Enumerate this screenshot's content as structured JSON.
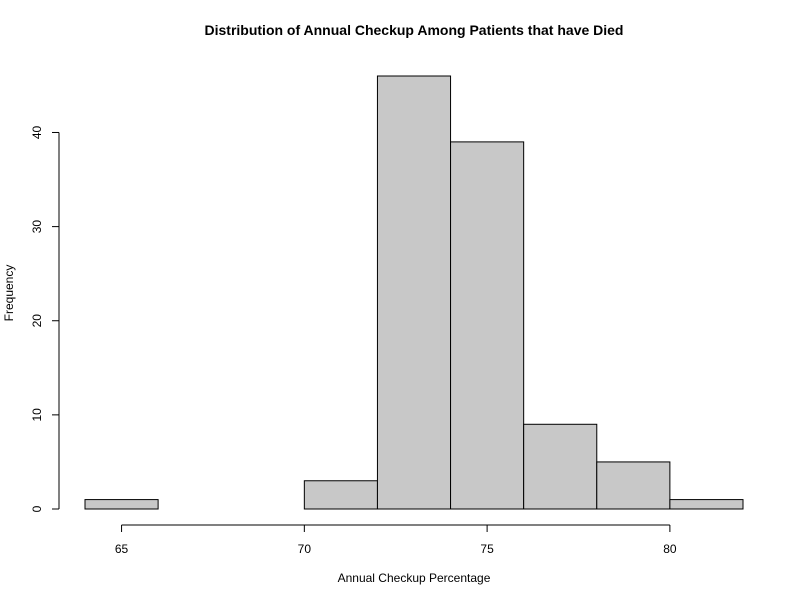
{
  "chart_data": {
    "type": "bar",
    "title": "Distribution of Annual Checkup Among Patients that have Died",
    "xlabel": "Annual Checkup Percentage",
    "ylabel": "Frequency",
    "bins": [
      {
        "x0": 64,
        "x1": 66,
        "count": 1
      },
      {
        "x0": 66,
        "x1": 68,
        "count": 0
      },
      {
        "x0": 68,
        "x1": 70,
        "count": 0
      },
      {
        "x0": 70,
        "x1": 72,
        "count": 3
      },
      {
        "x0": 72,
        "x1": 74,
        "count": 46
      },
      {
        "x0": 74,
        "x1": 76,
        "count": 39
      },
      {
        "x0": 76,
        "x1": 78,
        "count": 9
      },
      {
        "x0": 78,
        "x1": 80,
        "count": 5
      },
      {
        "x0": 80,
        "x1": 82,
        "count": 1
      }
    ],
    "xticks": [
      65,
      70,
      75,
      80
    ],
    "yticks": [
      0,
      10,
      20,
      30,
      40
    ],
    "xlim": [
      64,
      82
    ],
    "ylim": [
      0,
      46
    ],
    "grid": false,
    "bar_color": "#c8c8c8"
  }
}
